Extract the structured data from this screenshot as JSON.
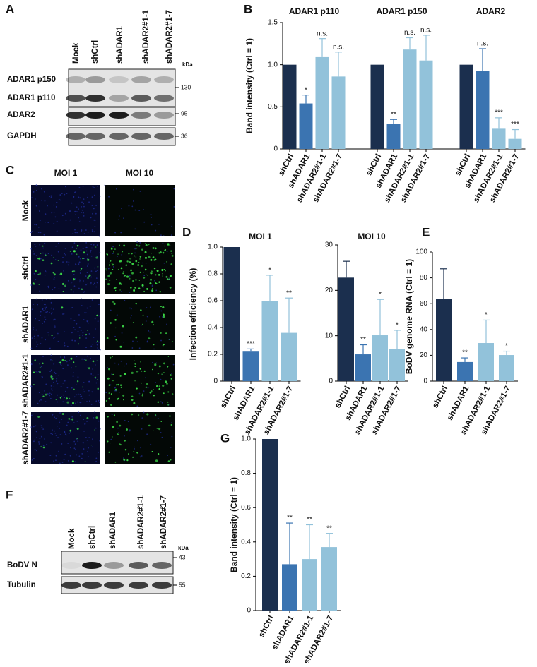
{
  "chart_data": [
    {
      "type": "bar",
      "panel": "B",
      "ylabel": "Band intensity (Ctrl = 1)",
      "ylim": [
        0,
        1.5
      ],
      "yticks": [
        0,
        0.5,
        {
          "value": 1,
          "label": "1.0"
        },
        1.5
      ],
      "categories": [
        "shCtrl",
        "shADAR1",
        "shADAR2#1-1",
        "shADAR2#1-7"
      ],
      "colors": [
        "#1b2f4e",
        "#3b74b1",
        "#92c2da",
        "#92c2da"
      ],
      "groups": [
        {
          "title": "ADAR1 p110",
          "values": [
            1,
            0.54,
            1.09,
            0.86
          ],
          "errors": [
            null,
            0.1,
            0.22,
            0.29
          ],
          "annotations": [
            null,
            "*",
            "n.s.",
            "n.s."
          ]
        },
        {
          "title": "ADAR1 p150",
          "values": [
            1,
            0.3,
            1.18,
            1.05
          ],
          "errors": [
            null,
            0.05,
            0.14,
            0.3
          ],
          "annotations": [
            null,
            "**",
            "n.s.",
            "n.s."
          ]
        },
        {
          "title": "ADAR2",
          "values": [
            1,
            0.93,
            0.24,
            0.12
          ],
          "errors": [
            null,
            0.26,
            0.13,
            0.11
          ],
          "annotations": [
            null,
            "n.s.",
            "***",
            "***"
          ]
        }
      ]
    },
    {
      "type": "bar",
      "panel": "D",
      "ylabel": "Infection efficiency (%)",
      "ylim": [
        0,
        1
      ],
      "yticks": [
        0,
        0.2,
        0.4,
        0.6,
        0.8,
        {
          "value": 1,
          "label": "1.0"
        }
      ],
      "categories": [
        "shCtrl",
        "shADAR1",
        "shADAR2#1-1",
        "shADAR2#1-7"
      ],
      "colors": [
        "#1b2f4e",
        "#3b74b1",
        "#92c2da",
        "#92c2da"
      ],
      "groups": [
        {
          "title": "MOI 1",
          "values": [
            1,
            0.22,
            0.6,
            0.36
          ],
          "errors": [
            null,
            0.02,
            0.19,
            0.26
          ],
          "annotations": [
            null,
            "***",
            "*",
            "**"
          ]
        }
      ]
    },
    {
      "type": "bar",
      "ylim": [
        0,
        30
      ],
      "yticks": [
        0,
        10,
        20,
        30
      ],
      "categories": [
        "shCtrl",
        "shADAR1",
        "shADAR2#1-1",
        "shADAR2#1-7"
      ],
      "colors": [
        "#1b2f4e",
        "#3b74b1",
        "#92c2da",
        "#92c2da"
      ],
      "groups": [
        {
          "title": "MOI 10",
          "values": [
            22.8,
            5.9,
            10.1,
            7.1
          ],
          "errors": [
            3.6,
            2.1,
            7.9,
            4.1
          ],
          "annotations": [
            null,
            "**",
            "*",
            "*"
          ]
        }
      ]
    },
    {
      "type": "bar",
      "panel": "E",
      "ylabel": "BoDV genome RNA (Ctrl = 1)",
      "ylim": [
        0,
        100
      ],
      "yticks": [
        0,
        20,
        40,
        60,
        80,
        100
      ],
      "categories": [
        "shCtrl",
        "shADAR1",
        "shADAR2#1-1",
        "shADAR2#1-7"
      ],
      "colors": [
        "#1b2f4e",
        "#3b74b1",
        "#92c2da",
        "#92c2da"
      ],
      "groups": [
        {
          "values": [
            63.5,
            14.8,
            29.5,
            20.2
          ],
          "errors": [
            23.5,
            3.2,
            17.8,
            3
          ],
          "annotations": [
            null,
            "**",
            "*",
            "*"
          ]
        }
      ]
    },
    {
      "type": "bar",
      "panel": "G",
      "ylabel": "Band intensity (Ctrl = 1)",
      "ylim": [
        0,
        1
      ],
      "yticks": [
        0,
        0.2,
        0.4,
        0.6,
        0.8,
        {
          "value": 1,
          "label": "1.0"
        }
      ],
      "categories": [
        "shCtrl",
        "shADAR1",
        "shADAR2#1-1",
        "shADAR2#1-7"
      ],
      "colors": [
        "#1b2f4e",
        "#3b74b1",
        "#92c2da",
        "#92c2da"
      ],
      "groups": [
        {
          "values": [
            1,
            0.27,
            0.3,
            0.37
          ],
          "errors": [
            null,
            0.24,
            0.2,
            0.08
          ],
          "annotations": [
            null,
            "**",
            "**",
            "**"
          ]
        }
      ]
    }
  ],
  "blots": [
    {
      "panel": "A",
      "lanes": [
        "Mock",
        "shCtrl",
        "shADAR1",
        "shADAR2#1-1",
        "shADAR2#1-7"
      ],
      "unit": "kDa",
      "rows": [
        "ADAR1 p150",
        "ADAR1 p110",
        "ADAR2",
        "GAPDH"
      ],
      "markers": [
        130,
        95,
        36
      ]
    },
    {
      "panel": "F",
      "lanes": [
        "Mock",
        "shCtrl",
        "shADAR1",
        "shADAR2#1-1",
        "shADAR2#1-7"
      ],
      "unit": "kDa",
      "rows": [
        "BoDV N",
        "Tubulin"
      ],
      "markers": [
        43,
        55
      ]
    }
  ],
  "images": {
    "panel": "C",
    "columns": [
      "MOI 1",
      "MOI 10"
    ],
    "rows": [
      "Mock",
      "shCtrl",
      "shADAR1",
      "shADAR2#1-1",
      "shADAR2#1-7"
    ]
  }
}
